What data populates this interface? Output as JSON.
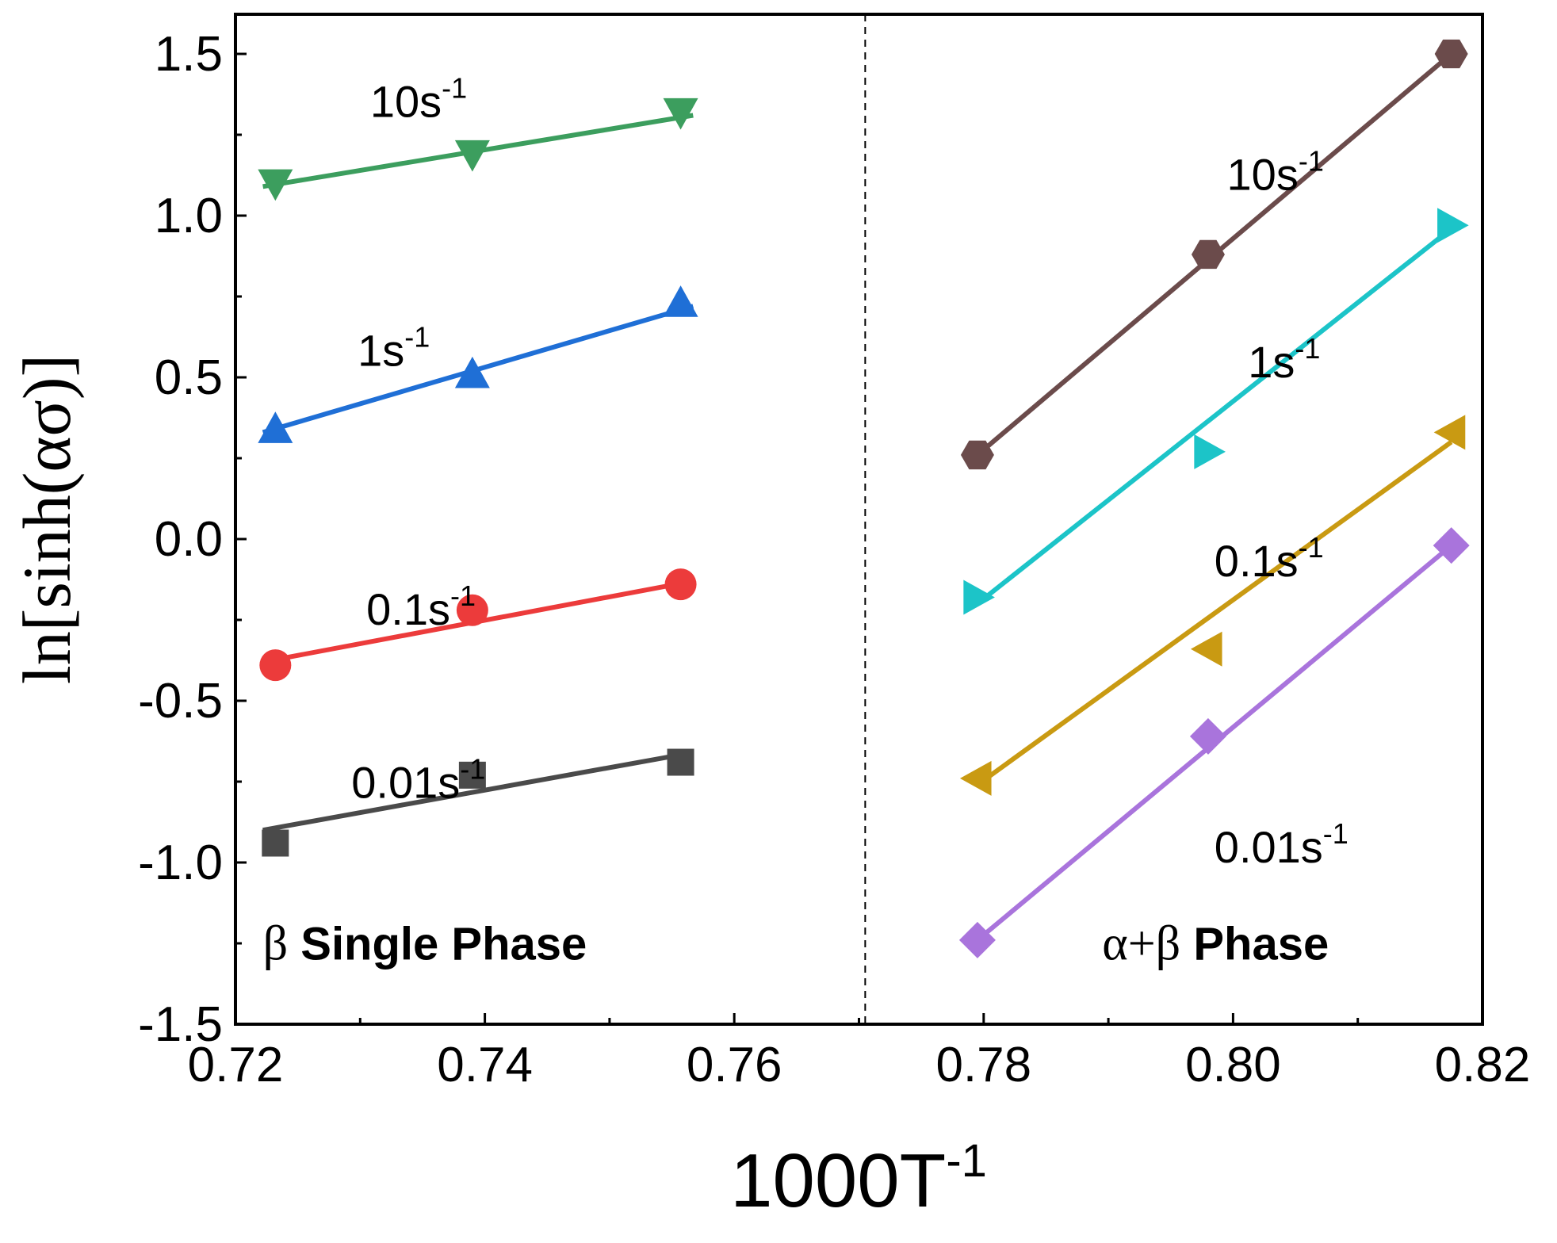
{
  "chart_data": {
    "type": "scatter",
    "title": "",
    "xlabel": "1000T",
    "xlabel_sup": "-1",
    "ylabel": "ln[sinh(ασ)]",
    "xlim": [
      0.72,
      0.82
    ],
    "ylim": [
      -1.5,
      1.6
    ],
    "xticks": [
      "0.72",
      "0.74",
      "0.76",
      "0.78",
      "0.80",
      "0.82"
    ],
    "yticks": [
      "1.5",
      "1.0",
      "0.5",
      "0.0",
      "-0.5",
      "-1.0",
      "-1.5"
    ],
    "divider_x": 0.7705,
    "series": [
      {
        "name": "β 10s-1",
        "color": "#3c9e5e",
        "marker": "triangle-down",
        "x": [
          0.7232,
          0.739,
          0.7557
        ],
        "y": [
          1.1,
          1.19,
          1.32
        ],
        "fit": [
          [
            0.7222,
            1.09
          ],
          [
            0.7567,
            1.31
          ]
        ]
      },
      {
        "name": "β 1s-1",
        "color": "#1f6fd6",
        "marker": "triangle-up",
        "x": [
          0.7232,
          0.739,
          0.7557
        ],
        "y": [
          0.34,
          0.51,
          0.73
        ],
        "fit": [
          [
            0.7222,
            0.33
          ],
          [
            0.7567,
            0.72
          ]
        ]
      },
      {
        "name": "β 0.1s-1",
        "color": "#ec3b3b",
        "marker": "circle",
        "x": [
          0.7232,
          0.739,
          0.7557
        ],
        "y": [
          -0.39,
          -0.22,
          -0.14
        ],
        "fit": [
          [
            0.7222,
            -0.38
          ],
          [
            0.7567,
            -0.13
          ]
        ]
      },
      {
        "name": "β 0.01s-1",
        "color": "#4a4a4a",
        "marker": "square",
        "x": [
          0.7232,
          0.739,
          0.7557
        ],
        "y": [
          -0.94,
          -0.73,
          -0.69
        ],
        "fit": [
          [
            0.7222,
            -0.9
          ],
          [
            0.7567,
            -0.66
          ]
        ]
      },
      {
        "name": "α+β 10s-1",
        "color": "#6b4b4b",
        "marker": "hexagon",
        "x": [
          0.7795,
          0.798,
          0.8175
        ],
        "y": [
          0.26,
          0.88,
          1.5
        ],
        "fit": [
          [
            0.7795,
            0.26
          ],
          [
            0.8175,
            1.5
          ]
        ]
      },
      {
        "name": "α+β 1s-1",
        "color": "#1cc4c8",
        "marker": "triangle-right",
        "x": [
          0.7795,
          0.798,
          0.8175
        ],
        "y": [
          -0.18,
          0.27,
          0.97
        ],
        "fit": [
          [
            0.7795,
            -0.2
          ],
          [
            0.8175,
            0.96
          ]
        ]
      },
      {
        "name": "α+β 0.1s-1",
        "color": "#c99a12",
        "marker": "triangle-left",
        "x": [
          0.7795,
          0.798,
          0.8175
        ],
        "y": [
          -0.74,
          -0.34,
          0.33
        ],
        "fit": [
          [
            0.7795,
            -0.76
          ],
          [
            0.8175,
            0.3
          ]
        ]
      },
      {
        "name": "α+β 0.01s-1",
        "color": "#a974dc",
        "marker": "diamond",
        "x": [
          0.7795,
          0.798,
          0.8175
        ],
        "y": [
          -1.24,
          -0.61,
          -0.02
        ],
        "fit": [
          [
            0.7795,
            -1.24
          ],
          [
            0.8175,
            -0.02
          ]
        ]
      }
    ],
    "annotations": [
      {
        "text": "10s",
        "sup": "-1",
        "x": 0.7308,
        "y": 1.305,
        "color": "#000"
      },
      {
        "text": "1s",
        "sup": "-1",
        "x": 0.7298,
        "y": 0.535,
        "color": "#000"
      },
      {
        "text": "0.1s",
        "sup": "-1",
        "x": 0.7305,
        "y": -0.265,
        "color": "#000"
      },
      {
        "text": "0.01s",
        "sup": "-1",
        "x": 0.7293,
        "y": -0.8,
        "color": "#000"
      },
      {
        "text": "10s",
        "sup": "-1",
        "x": 0.7995,
        "y": 1.08,
        "color": "#000"
      },
      {
        "text": "1s",
        "sup": "-1",
        "x": 0.8012,
        "y": 0.5,
        "color": "#000"
      },
      {
        "text": "0.1s",
        "sup": "-1",
        "x": 0.7985,
        "y": -0.115,
        "color": "#000"
      },
      {
        "text": "0.01s",
        "sup": "-1",
        "x": 0.7985,
        "y": -1.0,
        "color": "#000"
      }
    ],
    "phase_labels": [
      {
        "greek": "β",
        "text": " Single Phase",
        "x": 0.7222,
        "y": -1.3
      },
      {
        "greek": "α+β",
        "text": "  Phase",
        "x": 0.7895,
        "y": -1.3
      }
    ]
  }
}
